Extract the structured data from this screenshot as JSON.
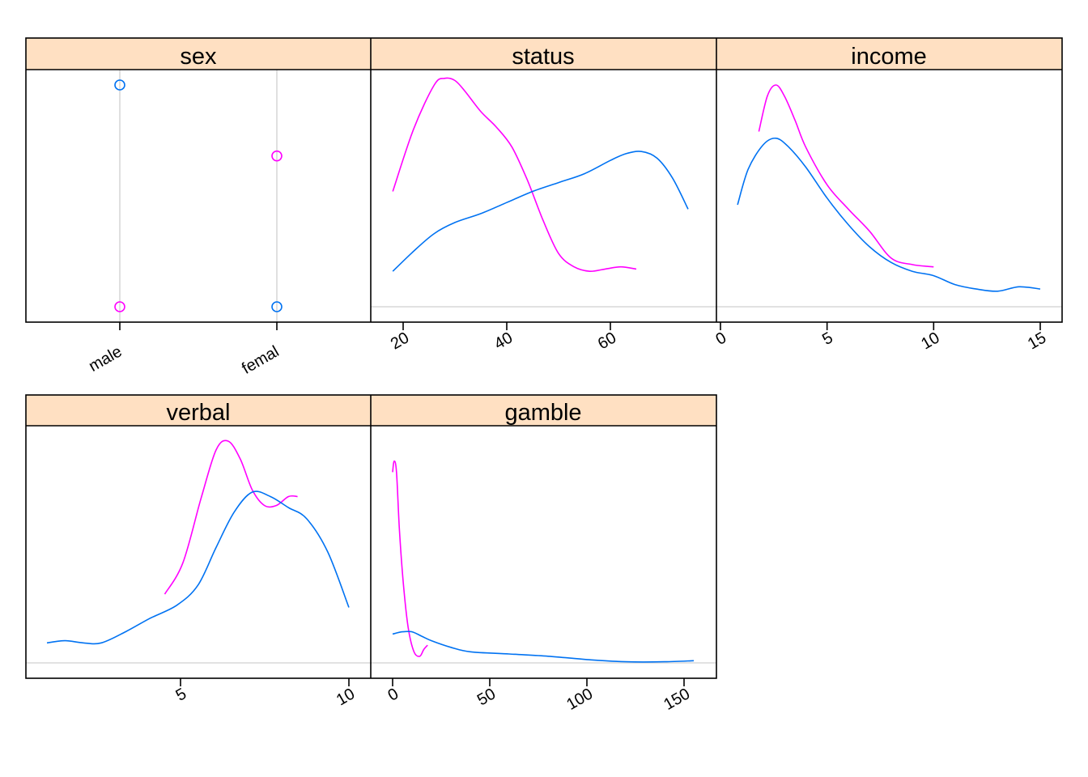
{
  "colors": {
    "strip_bg": "#FFE0C2",
    "group_1": "#0072F2",
    "group_2": "#FF00FF",
    "grid": "#D9D9D9",
    "frame": "#000000"
  },
  "chart_data": [
    {
      "type": "scatter",
      "panel": "sex",
      "title": "sex",
      "categories": [
        "male",
        "femal"
      ],
      "tick_labels": [
        "male",
        "femal"
      ],
      "series": [
        {
          "color": "group_1",
          "values": [
            1.0,
            0.0
          ]
        },
        {
          "color": "group_2",
          "values": [
            0.0,
            0.68
          ]
        }
      ],
      "ylim": [
        -0.07,
        1.07
      ],
      "grid": "vertical lines at categories"
    },
    {
      "type": "line",
      "panel": "status",
      "title": "status",
      "xlim": [
        12,
        77
      ],
      "ylim": [
        0,
        1
      ],
      "xticks": [
        20,
        40,
        60
      ],
      "tick_labels": [
        "20",
        "40",
        "60"
      ],
      "series": [
        {
          "color": "group_2",
          "x": [
            18,
            22,
            26,
            28,
            30,
            32,
            35,
            38,
            41,
            44,
            47,
            50,
            53,
            56,
            59,
            62,
            65
          ],
          "y": [
            0.52,
            0.8,
            1.0,
            1.03,
            1.02,
            0.97,
            0.88,
            0.81,
            0.72,
            0.57,
            0.39,
            0.24,
            0.18,
            0.16,
            0.17,
            0.18,
            0.17
          ]
        },
        {
          "color": "group_1",
          "x": [
            18,
            22,
            26,
            30,
            35,
            40,
            45,
            50,
            55,
            60,
            63,
            66,
            69,
            72,
            75
          ],
          "y": [
            0.16,
            0.25,
            0.33,
            0.38,
            0.42,
            0.47,
            0.52,
            0.56,
            0.6,
            0.66,
            0.69,
            0.7,
            0.67,
            0.58,
            0.44
          ]
        }
      ],
      "baseline": 0
    },
    {
      "type": "line",
      "panel": "income",
      "title": "income",
      "xlim": [
        0,
        16
      ],
      "ylim": [
        0,
        1
      ],
      "xticks": [
        0,
        5,
        10,
        15
      ],
      "tick_labels": [
        "0",
        "5",
        "10",
        "15"
      ],
      "series": [
        {
          "color": "group_2",
          "x": [
            1.8,
            2.2,
            2.6,
            3.0,
            3.5,
            4.0,
            5.0,
            6.0,
            7.0,
            8.0,
            9.0,
            10.0
          ],
          "y": [
            0.79,
            0.95,
            1.0,
            0.95,
            0.84,
            0.72,
            0.55,
            0.44,
            0.34,
            0.22,
            0.19,
            0.18
          ]
        },
        {
          "color": "group_1",
          "x": [
            0.8,
            1.3,
            2.0,
            2.6,
            3.2,
            4.0,
            5.0,
            6.0,
            7.0,
            8.0,
            9.0,
            10.0,
            11.0,
            12.0,
            13.0,
            14.0,
            15.0
          ],
          "y": [
            0.46,
            0.62,
            0.73,
            0.76,
            0.72,
            0.63,
            0.49,
            0.37,
            0.27,
            0.2,
            0.16,
            0.14,
            0.1,
            0.08,
            0.07,
            0.09,
            0.08
          ]
        }
      ],
      "baseline": 0
    },
    {
      "type": "line",
      "panel": "verbal",
      "title": "verbal",
      "xlim": [
        0,
        10
      ],
      "ylim": [
        0,
        1
      ],
      "xticks": [
        5,
        10
      ],
      "tick_labels": [
        "5",
        "10"
      ],
      "series": [
        {
          "color": "group_2",
          "x": [
            3.9,
            4.5,
            5.1,
            5.6,
            6.0,
            6.4,
            6.8,
            7.2,
            7.6,
            8.0,
            8.3
          ],
          "y": [
            0.31,
            0.45,
            0.74,
            0.96,
            1.0,
            0.92,
            0.78,
            0.71,
            0.71,
            0.75,
            0.75
          ]
        },
        {
          "color": "group_1",
          "x": [
            0.0,
            0.6,
            1.2,
            1.8,
            2.6,
            3.4,
            4.3,
            5.0,
            5.6,
            6.2,
            6.8,
            7.4,
            8.0,
            8.6,
            9.3,
            10.0
          ],
          "y": [
            0.09,
            0.1,
            0.09,
            0.09,
            0.14,
            0.2,
            0.26,
            0.35,
            0.52,
            0.68,
            0.77,
            0.75,
            0.7,
            0.65,
            0.5,
            0.25
          ]
        }
      ],
      "baseline": 0
    },
    {
      "type": "line",
      "panel": "gamble",
      "title": "gamble",
      "xlim": [
        -10,
        165
      ],
      "ylim": [
        0,
        1
      ],
      "xticks": [
        0,
        50,
        100,
        150
      ],
      "tick_labels": [
        "0",
        "50",
        "100",
        "150"
      ],
      "series": [
        {
          "color": "group_2",
          "x": [
            0.0,
            0.8,
            2.0,
            3.5,
            5.5,
            8.0,
            11.0,
            14.0,
            16.0,
            18.0
          ],
          "y": [
            0.86,
            0.91,
            0.86,
            0.6,
            0.36,
            0.16,
            0.05,
            0.03,
            0.06,
            0.08
          ]
        },
        {
          "color": "group_1",
          "x": [
            0,
            5,
            10,
            15,
            20,
            30,
            40,
            60,
            80,
            100,
            120,
            140,
            155
          ],
          "y": [
            0.13,
            0.14,
            0.14,
            0.12,
            0.1,
            0.07,
            0.05,
            0.04,
            0.03,
            0.015,
            0.005,
            0.005,
            0.01
          ]
        }
      ],
      "baseline": 0
    }
  ]
}
